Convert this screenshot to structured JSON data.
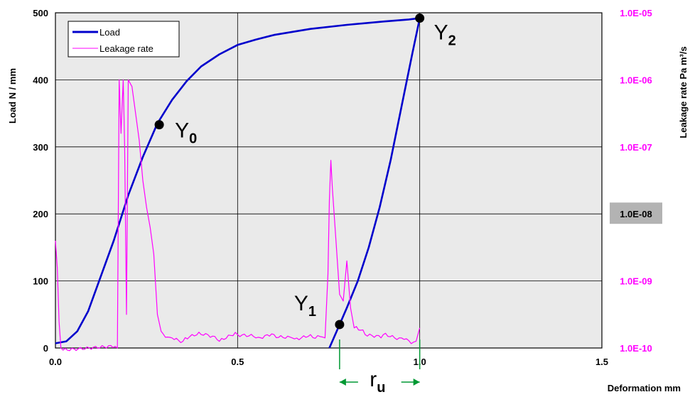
{
  "chart_data": {
    "type": "line",
    "xlabel": "Deformation  mm",
    "ylabel": "Load  N / mm",
    "y2label": "Leakage rate  Pa m³/s",
    "xlim": [
      0,
      1.5
    ],
    "ylim": [
      0,
      500
    ],
    "y2lim_log": [
      -10,
      -5
    ],
    "x_ticks": [
      "0.0",
      "0.5",
      "1.0",
      "1.5"
    ],
    "y_ticks": [
      "0",
      "100",
      "200",
      "300",
      "400",
      "500"
    ],
    "y2_ticks": [
      "1.0E-10",
      "1.0E-09",
      "1.0E-08",
      "1.0E-07",
      "1.0E-06",
      "1.0E-05"
    ],
    "highlighted_y2_tick": "1.0E-08",
    "grid": true,
    "legend_position": "top-left",
    "series": [
      {
        "name": "Load",
        "color": "#0000cc",
        "axis": "left",
        "points": [
          [
            0.0,
            7
          ],
          [
            0.03,
            10
          ],
          [
            0.06,
            25
          ],
          [
            0.09,
            55
          ],
          [
            0.12,
            100
          ],
          [
            0.16,
            160
          ],
          [
            0.2,
            228
          ],
          [
            0.24,
            285
          ],
          [
            0.28,
            335
          ],
          [
            0.32,
            370
          ],
          [
            0.36,
            398
          ],
          [
            0.4,
            420
          ],
          [
            0.45,
            438
          ],
          [
            0.5,
            452
          ],
          [
            0.55,
            460
          ],
          [
            0.6,
            467
          ],
          [
            0.7,
            476
          ],
          [
            0.8,
            482
          ],
          [
            0.9,
            487
          ],
          [
            0.97,
            490
          ],
          [
            1.0,
            492
          ],
          [
            0.98,
            440
          ],
          [
            0.95,
            360
          ],
          [
            0.92,
            280
          ],
          [
            0.89,
            210
          ],
          [
            0.86,
            150
          ],
          [
            0.83,
            100
          ],
          [
            0.8,
            60
          ],
          [
            0.78,
            35
          ],
          [
            0.76,
            10
          ],
          [
            0.752,
            0
          ]
        ]
      },
      {
        "name": "Leakage rate",
        "color": "#ff00ff",
        "axis": "right",
        "points": [
          [
            0.0,
            -8.4
          ],
          [
            0.005,
            -8.8
          ],
          [
            0.01,
            -9.6
          ],
          [
            0.015,
            -10.0
          ],
          [
            0.17,
            -10.0
          ],
          [
            0.175,
            -6.0
          ],
          [
            0.18,
            -6.8
          ],
          [
            0.186,
            -6.0
          ],
          [
            0.19,
            -7.0
          ],
          [
            0.195,
            -9.5
          ],
          [
            0.2,
            -6.0
          ],
          [
            0.21,
            -6.1
          ],
          [
            0.22,
            -6.5
          ],
          [
            0.23,
            -6.9
          ],
          [
            0.24,
            -7.5
          ],
          [
            0.25,
            -7.9
          ],
          [
            0.26,
            -8.2
          ],
          [
            0.27,
            -8.6
          ],
          [
            0.28,
            -9.5
          ],
          [
            0.29,
            -9.75
          ],
          [
            0.32,
            -9.85
          ],
          [
            0.35,
            -9.9
          ],
          [
            0.4,
            -9.8
          ],
          [
            0.45,
            -9.9
          ],
          [
            0.5,
            -9.8
          ],
          [
            0.55,
            -9.85
          ],
          [
            0.6,
            -9.8
          ],
          [
            0.65,
            -9.85
          ],
          [
            0.7,
            -9.8
          ],
          [
            0.74,
            -9.85
          ],
          [
            0.748,
            -8.9
          ],
          [
            0.752,
            -7.8
          ],
          [
            0.756,
            -7.2
          ],
          [
            0.76,
            -7.6
          ],
          [
            0.77,
            -8.4
          ],
          [
            0.78,
            -9.2
          ],
          [
            0.79,
            -9.3
          ],
          [
            0.8,
            -8.7
          ],
          [
            0.81,
            -9.4
          ],
          [
            0.82,
            -9.7
          ],
          [
            0.85,
            -9.8
          ],
          [
            0.9,
            -9.8
          ],
          [
            0.95,
            -9.85
          ],
          [
            0.99,
            -9.9
          ],
          [
            1.0,
            -9.7
          ]
        ]
      }
    ],
    "annotations": [
      {
        "label": "Y",
        "sub": "0",
        "x": 0.285,
        "y": 333
      },
      {
        "label": "Y",
        "sub": "1",
        "x": 0.78,
        "y": 35
      },
      {
        "label": "Y",
        "sub": "2",
        "x": 1.0,
        "y": 492
      }
    ],
    "dimension": {
      "label": "r",
      "sub": "u",
      "x1": 0.78,
      "x2": 1.0,
      "color": "#009933"
    }
  }
}
